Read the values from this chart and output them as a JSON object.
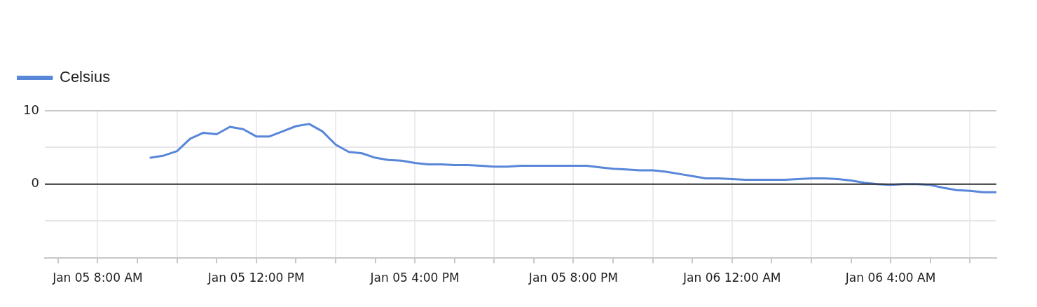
{
  "chart_data": {
    "type": "line",
    "x": [
      "--01-05T09:20",
      "--01-05T09:40",
      "--01-05T10:00",
      "--01-05T10:20",
      "--01-05T10:40",
      "--01-05T11:00",
      "--01-05T11:20",
      "--01-05T11:40",
      "--01-05T12:00",
      "--01-05T12:20",
      "--01-05T12:40",
      "--01-05T13:00",
      "--01-05T13:20",
      "--01-05T13:40",
      "--01-05T14:00",
      "--01-05T14:20",
      "--01-05T14:40",
      "--01-05T15:00",
      "--01-05T15:20",
      "--01-05T15:40",
      "--01-05T16:00",
      "--01-05T16:20",
      "--01-05T16:40",
      "--01-05T17:00",
      "--01-05T17:20",
      "--01-05T17:40",
      "--01-05T18:00",
      "--01-05T18:20",
      "--01-05T18:40",
      "--01-05T19:00",
      "--01-05T19:20",
      "--01-05T19:40",
      "--01-05T20:00",
      "--01-05T20:20",
      "--01-05T20:40",
      "--01-05T21:00",
      "--01-05T21:20",
      "--01-05T21:40",
      "--01-05T22:00",
      "--01-05T22:20",
      "--01-05T22:40",
      "--01-05T23:00",
      "--01-05T23:20",
      "--01-05T23:40",
      "--01-06T00:00",
      "--01-06T00:20",
      "--01-06T00:40",
      "--01-06T01:00",
      "--01-06T01:20",
      "--01-06T01:40",
      "--01-06T02:00",
      "--01-06T02:20",
      "--01-06T02:40",
      "--01-06T03:00",
      "--01-06T03:20",
      "--01-06T03:40",
      "--01-06T04:00",
      "--01-06T04:20",
      "--01-06T04:40",
      "--01-06T05:00",
      "--01-06T05:20",
      "--01-06T05:40",
      "--01-06T06:00",
      "--01-06T06:20",
      "--01-06T06:40"
    ],
    "series": [
      {
        "name": "Celsius",
        "color": "#5886d9",
        "values": [
          3.6,
          3.9,
          4.5,
          6.2,
          7.0,
          6.8,
          7.8,
          7.5,
          6.5,
          6.5,
          7.2,
          7.9,
          8.2,
          7.2,
          5.4,
          4.4,
          4.2,
          3.6,
          3.3,
          3.2,
          2.9,
          2.7,
          2.7,
          2.6,
          2.6,
          2.5,
          2.4,
          2.4,
          2.5,
          2.5,
          2.5,
          2.5,
          2.5,
          2.5,
          2.3,
          2.1,
          2.0,
          1.9,
          1.9,
          1.7,
          1.4,
          1.1,
          0.8,
          0.8,
          0.7,
          0.6,
          0.6,
          0.6,
          0.6,
          0.7,
          0.8,
          0.8,
          0.7,
          0.5,
          0.2,
          0.0,
          -0.1,
          0.0,
          0.0,
          -0.1,
          -0.5,
          -0.8,
          -0.9,
          -1.1,
          -1.1
        ]
      }
    ],
    "xlim": [
      "--01-05T06:40",
      "--01-06T06:40"
    ],
    "xticks": [
      {
        "value": "--01-05T07:00",
        "label": null
      },
      {
        "value": "--01-05T08:00",
        "label": "Jan 05 8:00 AM"
      },
      {
        "value": "--01-05T09:00",
        "label": null
      },
      {
        "value": "--01-05T10:00",
        "label": null
      },
      {
        "value": "--01-05T11:00",
        "label": null
      },
      {
        "value": "--01-05T12:00",
        "label": "Jan 05 12:00 PM"
      },
      {
        "value": "--01-05T13:00",
        "label": null
      },
      {
        "value": "--01-05T14:00",
        "label": null
      },
      {
        "value": "--01-05T15:00",
        "label": null
      },
      {
        "value": "--01-05T16:00",
        "label": "Jan 05 4:00 PM"
      },
      {
        "value": "--01-05T17:00",
        "label": null
      },
      {
        "value": "--01-05T18:00",
        "label": null
      },
      {
        "value": "--01-05T19:00",
        "label": null
      },
      {
        "value": "--01-05T20:00",
        "label": "Jan 05 8:00 PM"
      },
      {
        "value": "--01-05T21:00",
        "label": null
      },
      {
        "value": "--01-05T22:00",
        "label": null
      },
      {
        "value": "--01-05T23:00",
        "label": null
      },
      {
        "value": "--01-06T00:00",
        "label": "Jan 06 12:00 AM"
      },
      {
        "value": "--01-06T01:00",
        "label": null
      },
      {
        "value": "--01-06T02:00",
        "label": null
      },
      {
        "value": "--01-06T03:00",
        "label": null
      },
      {
        "value": "--01-06T04:00",
        "label": "Jan 06 4:00 AM"
      },
      {
        "value": "--01-06T05:00",
        "label": null
      },
      {
        "value": "--01-06T06:00",
        "label": null
      }
    ],
    "ylim": [
      -10,
      10
    ],
    "yticks": [
      10,
      {
        "value": 5,
        "label": null
      },
      0,
      {
        "value": -5,
        "label": null
      },
      {
        "value": -10,
        "label": null
      }
    ],
    "ref_lines": [
      {
        "axis": "y",
        "value": 0,
        "color": "#333333"
      }
    ],
    "grid": true,
    "legend": "top left",
    "marker": "none",
    "line_style": "solid"
  }
}
